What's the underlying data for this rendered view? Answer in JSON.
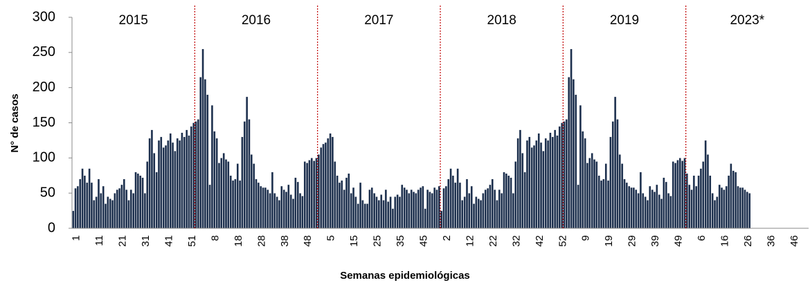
{
  "chart_data": {
    "type": "bar",
    "y_label": "N° de casos",
    "x_label": "Semanas epidemiológicas",
    "periods": [
      "2015",
      "2016",
      "2017",
      "2018",
      "2019",
      "2023*"
    ],
    "color": "#1c2f4d",
    "period_line_color": "#c00000",
    "ylim": [
      0,
      300
    ],
    "yticks": [
      0,
      50,
      100,
      150,
      200,
      250,
      300
    ],
    "categories": [
      "1",
      null,
      null,
      null,
      null,
      null,
      null,
      null,
      null,
      null,
      "11",
      null,
      null,
      null,
      null,
      null,
      null,
      null,
      null,
      null,
      "21",
      null,
      null,
      null,
      null,
      null,
      null,
      null,
      null,
      null,
      "31",
      null,
      null,
      null,
      null,
      null,
      null,
      null,
      null,
      null,
      "41",
      null,
      null,
      null,
      null,
      null,
      null,
      null,
      null,
      null,
      "51",
      null,
      null,
      null,
      null,
      null,
      null,
      null,
      null,
      null,
      "8",
      null,
      null,
      null,
      null,
      null,
      null,
      null,
      null,
      null,
      "18",
      null,
      null,
      null,
      null,
      null,
      null,
      null,
      null,
      null,
      "28",
      null,
      null,
      null,
      null,
      null,
      null,
      null,
      null,
      null,
      "38",
      null,
      null,
      null,
      null,
      null,
      null,
      null,
      null,
      null,
      "48",
      null,
      null,
      null,
      null,
      null,
      null,
      null,
      null,
      null,
      "5",
      null,
      null,
      null,
      null,
      null,
      null,
      null,
      null,
      null,
      "15",
      null,
      null,
      null,
      null,
      null,
      null,
      null,
      null,
      null,
      "25",
      null,
      null,
      null,
      null,
      null,
      null,
      null,
      null,
      null,
      "35",
      null,
      null,
      null,
      null,
      null,
      null,
      null,
      null,
      null,
      "45",
      null,
      null,
      null,
      null,
      null,
      null,
      null,
      null,
      null,
      "2",
      null,
      null,
      null,
      null,
      null,
      null,
      null,
      null,
      null,
      "12",
      null,
      null,
      null,
      null,
      null,
      null,
      null,
      null,
      null,
      "22",
      null,
      null,
      null,
      null,
      null,
      null,
      null,
      null,
      null,
      "32",
      null,
      null,
      null,
      null,
      null,
      null,
      null,
      null,
      null,
      "42",
      null,
      null,
      null,
      null,
      null,
      null,
      null,
      null,
      null,
      "52",
      null,
      null,
      null,
      null,
      null,
      null,
      null,
      null,
      null,
      "9",
      null,
      null,
      null,
      null,
      null,
      null,
      null,
      null,
      null,
      "19",
      null,
      null,
      null,
      null,
      null,
      null,
      null,
      null,
      null,
      "29",
      null,
      null,
      null,
      null,
      null,
      null,
      null,
      null,
      null,
      "39",
      null,
      null,
      null,
      null,
      null,
      null,
      null,
      null,
      null,
      "49",
      null,
      null,
      null,
      null,
      null,
      null,
      null,
      null,
      null,
      "6",
      null,
      null,
      null,
      null,
      null,
      null,
      null,
      null,
      null,
      "16",
      null,
      null,
      null,
      null,
      null,
      null,
      null,
      null,
      null,
      "26",
      null,
      null,
      null,
      null,
      null,
      null,
      null,
      null,
      null,
      "36",
      null,
      null,
      null,
      null,
      null,
      null,
      null,
      null,
      null,
      "46",
      null,
      null,
      null,
      null,
      null,
      null,
      null
    ],
    "values": [
      25,
      57,
      60,
      70,
      85,
      75,
      65,
      85,
      65,
      40,
      45,
      70,
      50,
      60,
      35,
      45,
      42,
      40,
      50,
      55,
      57,
      62,
      70,
      55,
      40,
      55,
      50,
      80,
      78,
      75,
      72,
      50,
      95,
      128,
      140,
      107,
      80,
      125,
      130,
      115,
      118,
      125,
      135,
      122,
      110,
      128,
      125,
      136,
      130,
      140,
      132,
      145,
      150,
      152,
      155,
      215,
      255,
      212,
      190,
      62,
      175,
      138,
      128,
      93,
      100,
      107,
      98,
      95,
      75,
      68,
      70,
      92,
      68,
      130,
      152,
      187,
      155,
      105,
      92,
      70,
      65,
      60,
      58,
      58,
      55,
      50,
      80,
      50,
      45,
      40,
      60,
      55,
      52,
      62,
      48,
      42,
      72,
      66,
      50,
      46,
      95,
      93,
      97,
      100,
      96,
      100,
      105,
      115,
      120,
      122,
      128,
      135,
      130,
      95,
      75,
      65,
      68,
      55,
      72,
      78,
      50,
      58,
      45,
      35,
      65,
      40,
      35,
      35,
      55,
      58,
      50,
      45,
      40,
      48,
      40,
      55,
      38,
      45,
      28,
      45,
      48,
      45,
      62,
      58,
      55,
      50,
      55,
      52,
      50,
      55,
      58,
      60,
      28,
      55,
      52,
      50,
      58,
      55,
      60,
      25,
      57,
      60,
      70,
      85,
      75,
      65,
      85,
      65,
      40,
      45,
      70,
      50,
      60,
      35,
      45,
      42,
      40,
      50,
      55,
      57,
      62,
      70,
      55,
      40,
      55,
      50,
      80,
      78,
      75,
      72,
      50,
      95,
      128,
      140,
      107,
      80,
      125,
      130,
      115,
      118,
      125,
      135,
      122,
      110,
      128,
      125,
      136,
      130,
      140,
      132,
      145,
      150,
      152,
      155,
      215,
      255,
      212,
      190,
      62,
      175,
      138,
      128,
      93,
      100,
      107,
      98,
      95,
      75,
      68,
      70,
      92,
      68,
      130,
      152,
      187,
      155,
      105,
      92,
      70,
      65,
      60,
      58,
      58,
      55,
      50,
      80,
      50,
      45,
      40,
      60,
      55,
      52,
      62,
      48,
      42,
      72,
      66,
      50,
      46,
      95,
      93,
      97,
      100,
      96,
      100,
      78,
      62,
      55,
      75,
      60,
      75,
      85,
      95,
      125,
      105,
      75,
      50,
      40,
      45,
      62,
      58,
      55,
      60,
      75,
      92,
      82,
      80,
      60,
      58,
      58,
      55,
      52,
      50,
      null,
      null,
      null,
      null,
      null,
      null,
      null,
      null,
      null,
      null,
      null,
      null,
      null,
      null,
      null,
      null,
      null,
      null,
      null,
      null,
      null,
      null,
      null,
      null,
      null
    ]
  }
}
